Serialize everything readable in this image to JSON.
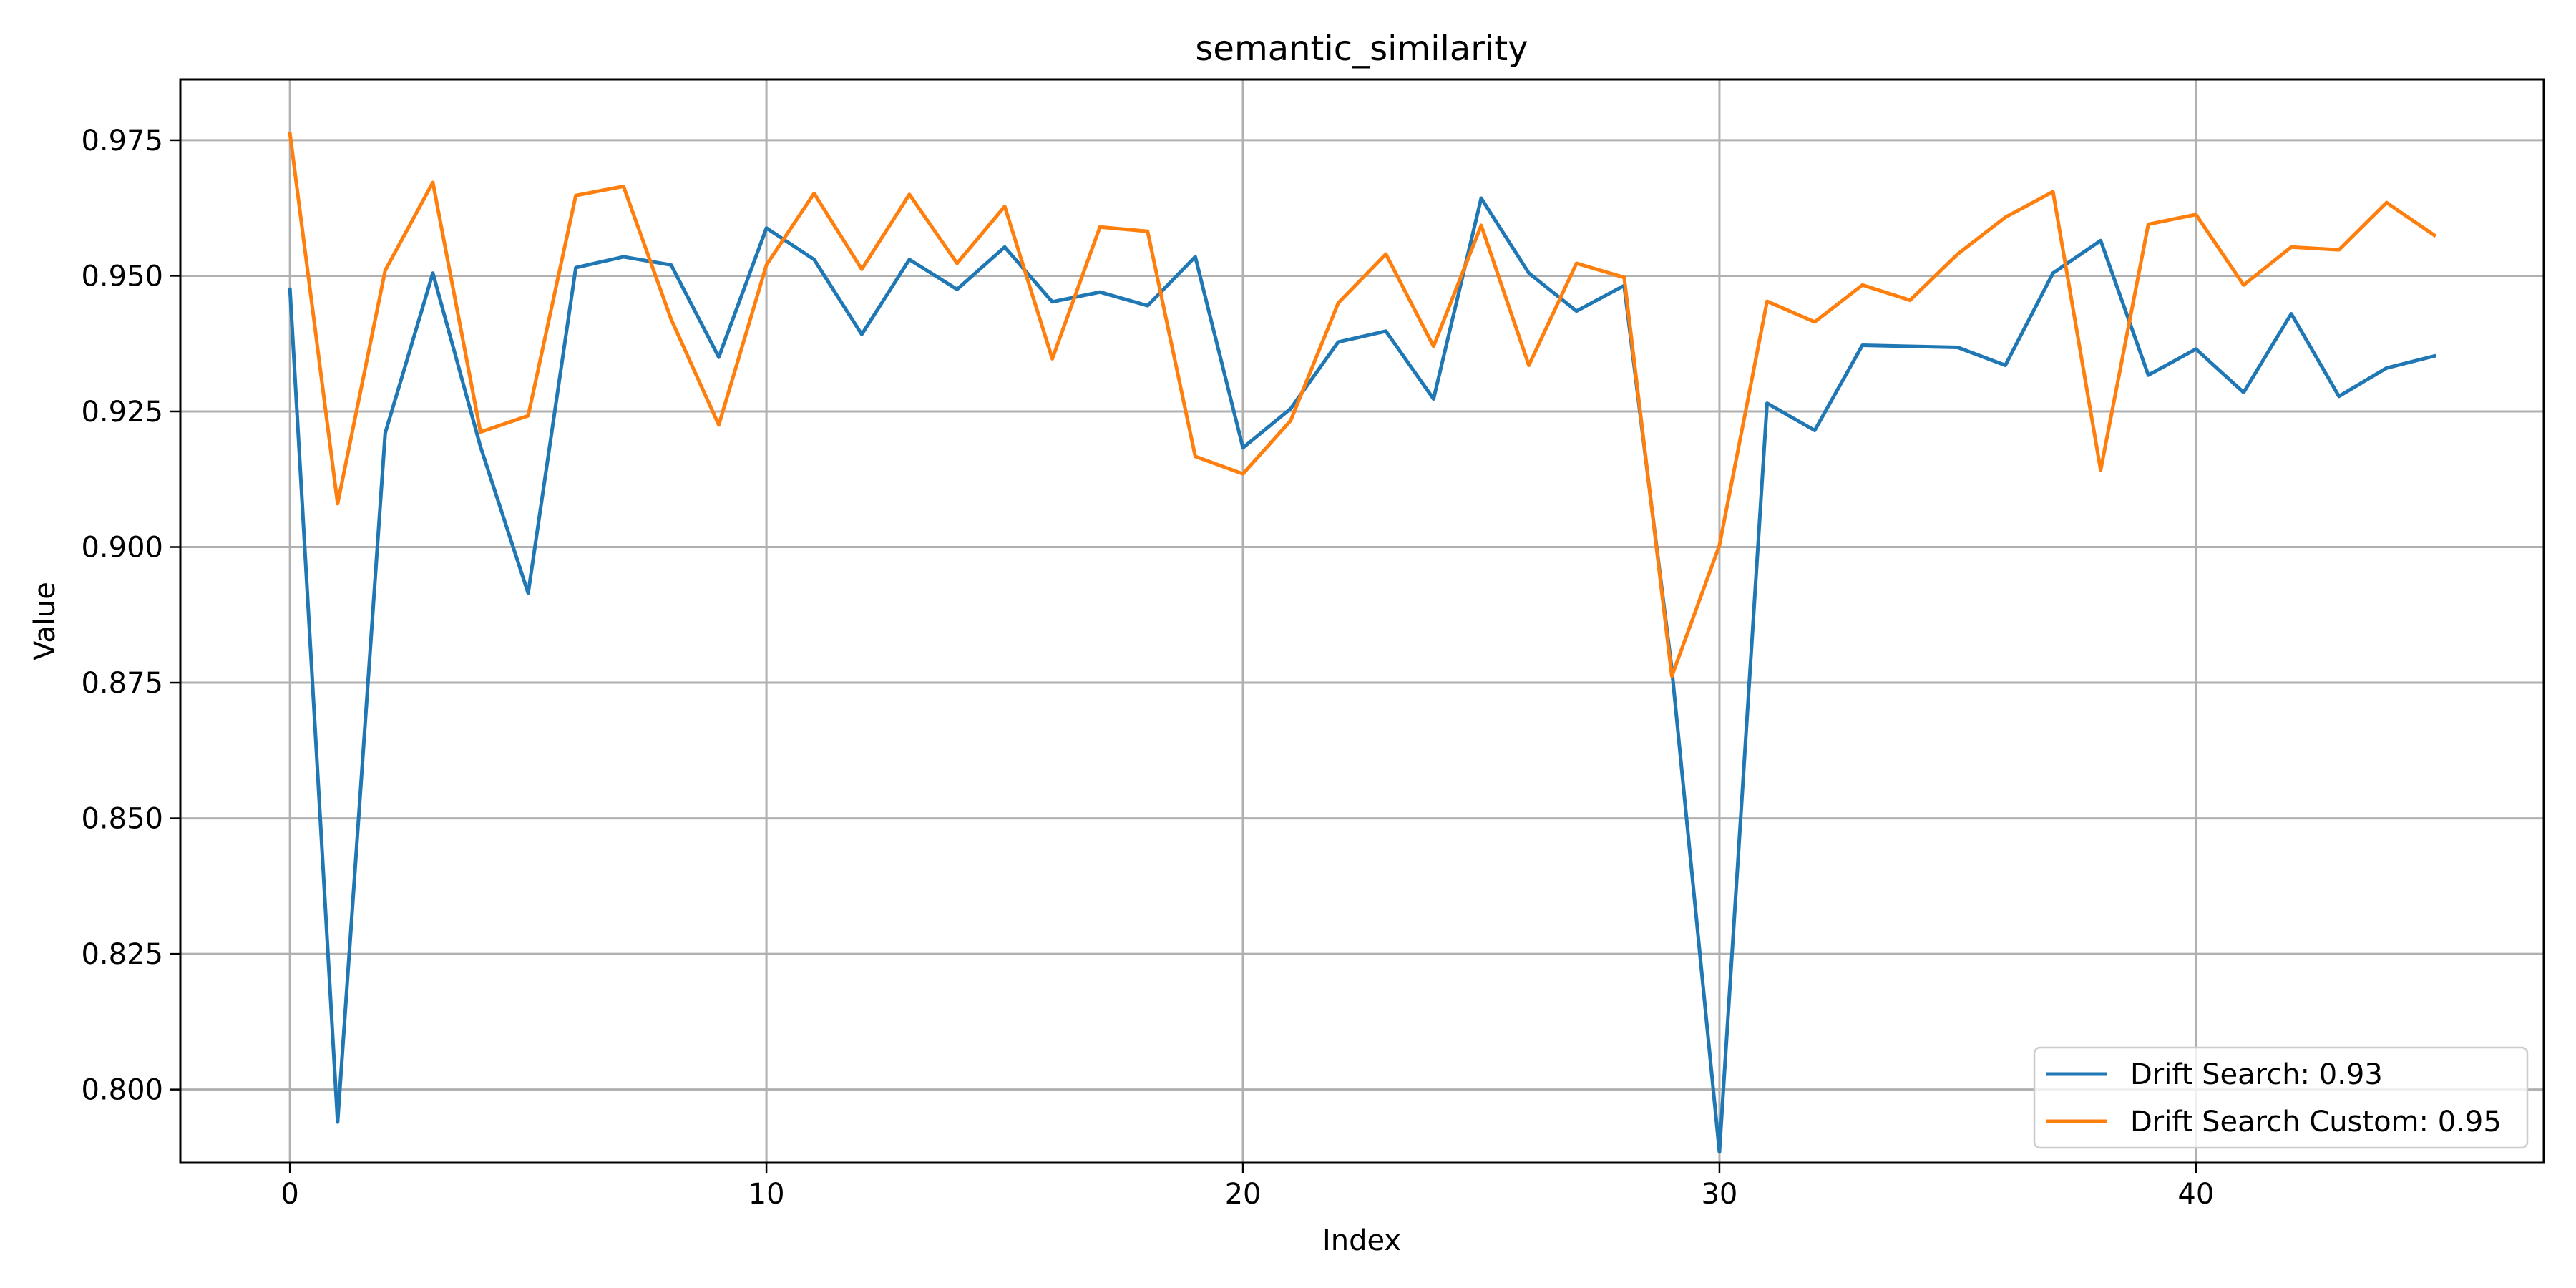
{
  "chart_data": {
    "type": "line",
    "title": "semantic_similarity",
    "xlabel": "Index",
    "ylabel": "Value",
    "xlim": [
      -2.3,
      47.3
    ],
    "ylim": [
      0.7865,
      0.9862
    ],
    "x_ticks": [
      0,
      10,
      20,
      30,
      40
    ],
    "y_ticks": [
      0.8,
      0.825,
      0.85,
      0.875,
      0.9,
      0.925,
      0.95,
      0.975
    ],
    "y_tick_labels": [
      "0.800",
      "0.825",
      "0.850",
      "0.875",
      "0.900",
      "0.925",
      "0.950",
      "0.975"
    ],
    "grid": true,
    "legend_position": "lower-right",
    "x": [
      0,
      1,
      2,
      3,
      4,
      5,
      6,
      7,
      8,
      9,
      10,
      11,
      12,
      13,
      14,
      15,
      16,
      17,
      18,
      19,
      20,
      21,
      22,
      23,
      24,
      25,
      26,
      27,
      28,
      29,
      30,
      31,
      32,
      33,
      34,
      35,
      36,
      37,
      38,
      39,
      40,
      41,
      42,
      43,
      44,
      45
    ],
    "series": [
      {
        "name": "Drift Search: 0.93",
        "color": "#1f77b4",
        "values": [
          0.9475,
          0.794,
          0.921,
          0.9505,
          0.9185,
          0.8915,
          0.9515,
          0.9535,
          0.952,
          0.935,
          0.9588,
          0.953,
          0.9392,
          0.953,
          0.9475,
          0.9553,
          0.9452,
          0.947,
          0.9445,
          0.9535,
          0.9183,
          0.9255,
          0.9378,
          0.9398,
          0.9273,
          0.9643,
          0.9505,
          0.9435,
          0.9482,
          0.8775,
          0.7885,
          0.9265,
          0.9215,
          0.9372,
          0.937,
          0.9368,
          0.9335,
          0.9505,
          0.9565,
          0.9317,
          0.9365,
          0.9285,
          0.943,
          0.9278,
          0.933,
          0.9352
        ]
      },
      {
        "name": "Drift Search Custom: 0.95",
        "color": "#ff7f0e",
        "values": [
          0.9762,
          0.908,
          0.951,
          0.9672,
          0.9212,
          0.9242,
          0.9648,
          0.9665,
          0.942,
          0.9225,
          0.952,
          0.9652,
          0.9512,
          0.965,
          0.9523,
          0.9628,
          0.9347,
          0.959,
          0.9582,
          0.9167,
          0.9135,
          0.9233,
          0.945,
          0.954,
          0.937,
          0.9593,
          0.9335,
          0.9523,
          0.9497,
          0.8762,
          0.9003,
          0.9453,
          0.9415,
          0.9483,
          0.9455,
          0.954,
          0.9608,
          0.9655,
          0.9142,
          0.9595,
          0.9613,
          0.9483,
          0.9553,
          0.9548,
          0.9635,
          0.9575
        ]
      }
    ]
  }
}
